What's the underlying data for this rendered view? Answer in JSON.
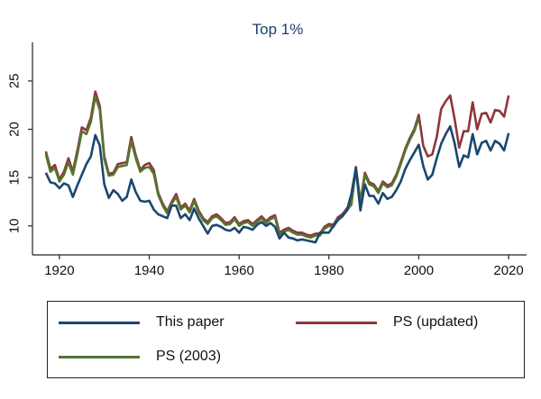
{
  "chart_data": {
    "type": "line",
    "title": "Top 1%",
    "xlabel": "",
    "ylabel": "",
    "xlim": [
      1914,
      2024
    ],
    "ylim": [
      7,
      29
    ],
    "xticks": [
      1920,
      1940,
      1960,
      1980,
      2000,
      2020
    ],
    "yticks": [
      10,
      15,
      20,
      25
    ],
    "grid": false,
    "legend_position": "bottom",
    "series": [
      {
        "name": "This paper",
        "color": "#1a476f",
        "x": [
          1917,
          1918,
          1919,
          1920,
          1921,
          1922,
          1923,
          1924,
          1925,
          1926,
          1927,
          1928,
          1929,
          1930,
          1931,
          1932,
          1933,
          1934,
          1935,
          1936,
          1937,
          1938,
          1939,
          1940,
          1941,
          1942,
          1943,
          1944,
          1945,
          1946,
          1947,
          1948,
          1949,
          1950,
          1951,
          1952,
          1953,
          1954,
          1955,
          1956,
          1957,
          1958,
          1959,
          1960,
          1961,
          1962,
          1963,
          1964,
          1965,
          1966,
          1967,
          1968,
          1969,
          1970,
          1971,
          1972,
          1973,
          1974,
          1975,
          1976,
          1977,
          1978,
          1979,
          1980,
          1981,
          1982,
          1983,
          1984,
          1985,
          1986,
          1987,
          1988,
          1989,
          1990,
          1991,
          1992,
          1993,
          1994,
          1995,
          1996,
          1997,
          1998,
          1999,
          2000,
          2001,
          2002,
          2003,
          2004,
          2005,
          2006,
          2007,
          2008,
          2009,
          2010,
          2011,
          2012,
          2013,
          2014,
          2015,
          2016,
          2017,
          2018,
          2019,
          2020
        ],
        "y": [
          15.5,
          14.5,
          14.4,
          13.9,
          14.4,
          14.2,
          13.0,
          14.2,
          15.3,
          16.4,
          17.2,
          19.4,
          18.3,
          14.3,
          12.9,
          13.7,
          13.3,
          12.6,
          13.0,
          14.8,
          13.5,
          12.6,
          12.5,
          12.6,
          11.7,
          11.2,
          11.0,
          10.8,
          12.1,
          12.1,
          10.8,
          11.2,
          10.6,
          11.8,
          10.8,
          10.0,
          9.2,
          10.0,
          10.1,
          9.9,
          9.6,
          9.5,
          9.8,
          9.3,
          9.9,
          9.8,
          9.6,
          10.1,
          10.4,
          10.0,
          10.3,
          9.9,
          8.7,
          9.3,
          8.8,
          8.7,
          8.5,
          8.6,
          8.5,
          8.4,
          8.3,
          9.3,
          9.3,
          9.3,
          10.0,
          10.6,
          11.0,
          11.6,
          13.3,
          16.0,
          11.6,
          14.3,
          13.1,
          13.1,
          12.3,
          13.4,
          12.8,
          13.0,
          13.7,
          14.6,
          15.9,
          16.8,
          17.6,
          18.4,
          16.2,
          14.8,
          15.3,
          17.0,
          18.5,
          19.5,
          20.3,
          18.5,
          16.1,
          17.3,
          17.1,
          19.5,
          17.4,
          18.6,
          18.8,
          17.8,
          18.8,
          18.5,
          17.8,
          19.6
        ]
      },
      {
        "name": "PS (updated)",
        "color": "#90353b",
        "x": [
          1917,
          1918,
          1919,
          1920,
          1921,
          1922,
          1923,
          1924,
          1925,
          1926,
          1927,
          1928,
          1929,
          1930,
          1931,
          1932,
          1933,
          1934,
          1935,
          1936,
          1937,
          1938,
          1939,
          1940,
          1941,
          1942,
          1943,
          1944,
          1945,
          1946,
          1947,
          1948,
          1949,
          1950,
          1951,
          1952,
          1953,
          1954,
          1955,
          1956,
          1957,
          1958,
          1959,
          1960,
          1961,
          1962,
          1963,
          1964,
          1965,
          1966,
          1967,
          1968,
          1969,
          1970,
          1971,
          1972,
          1973,
          1974,
          1975,
          1976,
          1977,
          1978,
          1979,
          1980,
          1981,
          1982,
          1983,
          1984,
          1985,
          1986,
          1987,
          1988,
          1989,
          1990,
          1991,
          1992,
          1993,
          1994,
          1995,
          1996,
          1997,
          1998,
          1999,
          2000,
          2001,
          2002,
          2003,
          2004,
          2005,
          2006,
          2007,
          2008,
          2009,
          2010,
          2011,
          2012,
          2013,
          2014,
          2015,
          2016,
          2017,
          2018,
          2019,
          2020
        ],
        "y": [
          17.7,
          15.9,
          16.3,
          14.8,
          15.6,
          17.0,
          15.6,
          17.8,
          20.2,
          19.9,
          21.2,
          23.9,
          22.4,
          17.2,
          15.4,
          15.5,
          16.4,
          16.5,
          16.6,
          19.2,
          17.3,
          15.8,
          16.3,
          16.5,
          15.8,
          13.4,
          12.3,
          11.5,
          12.5,
          13.3,
          11.9,
          12.3,
          11.6,
          12.8,
          11.6,
          10.8,
          10.4,
          11.0,
          11.2,
          10.8,
          10.3,
          10.4,
          10.9,
          10.2,
          10.5,
          10.6,
          10.2,
          10.6,
          11.0,
          10.5,
          10.9,
          11.1,
          9.3,
          9.6,
          9.8,
          9.5,
          9.3,
          9.3,
          9.1,
          9.0,
          9.2,
          9.2,
          9.9,
          10.2,
          10.1,
          10.9,
          11.2,
          11.8,
          12.4,
          16.1,
          12.5,
          15.5,
          14.5,
          14.3,
          13.6,
          14.6,
          14.2,
          14.4,
          15.3,
          16.6,
          18.0,
          19.1,
          20.0,
          21.5,
          18.3,
          17.2,
          17.4,
          19.2,
          22.1,
          22.9,
          23.5,
          21.0,
          18.1,
          19.8,
          19.8,
          22.8,
          20.0,
          21.6,
          21.7,
          20.7,
          22.0,
          21.9,
          21.3,
          23.5
        ]
      },
      {
        "name": "PS (2003)",
        "color": "#55752f",
        "x": [
          1917,
          1918,
          1919,
          1920,
          1921,
          1922,
          1923,
          1924,
          1925,
          1926,
          1927,
          1928,
          1929,
          1930,
          1931,
          1932,
          1933,
          1934,
          1935,
          1936,
          1937,
          1938,
          1939,
          1940,
          1941,
          1942,
          1943,
          1944,
          1945,
          1946,
          1947,
          1948,
          1949,
          1950,
          1951,
          1952,
          1953,
          1954,
          1955,
          1956,
          1957,
          1958,
          1959,
          1960,
          1961,
          1962,
          1963,
          1964,
          1965,
          1966,
          1967,
          1968,
          1969,
          1970,
          1971,
          1972,
          1973,
          1974,
          1975,
          1976,
          1977,
          1978,
          1979,
          1980,
          1981,
          1982,
          1983,
          1984,
          1985,
          1986,
          1987,
          1988,
          1989,
          1990,
          1991,
          1992,
          1993,
          1994,
          1995,
          1996,
          1997,
          1998,
          1999,
          2000
        ],
        "y": [
          17.4,
          15.6,
          16.0,
          14.6,
          15.3,
          16.6,
          15.3,
          17.4,
          19.8,
          19.5,
          20.8,
          23.4,
          22.0,
          16.9,
          15.2,
          15.3,
          16.1,
          16.2,
          16.3,
          18.8,
          17.0,
          15.6,
          16.0,
          16.1,
          15.4,
          13.2,
          12.1,
          11.3,
          12.3,
          13.0,
          11.7,
          12.1,
          11.4,
          12.6,
          11.4,
          10.6,
          10.2,
          10.8,
          11.0,
          10.6,
          10.1,
          10.2,
          10.7,
          10.0,
          10.3,
          10.4,
          10.0,
          10.4,
          10.8,
          10.3,
          10.7,
          10.9,
          9.1,
          9.4,
          9.6,
          9.3,
          9.1,
          9.1,
          8.9,
          8.8,
          9.0,
          9.0,
          9.7,
          10.0,
          9.9,
          10.7,
          11.0,
          11.6,
          12.2,
          15.9,
          12.3,
          15.3,
          14.3,
          14.1,
          13.4,
          14.4,
          14.0,
          14.2,
          15.1,
          16.4,
          17.8,
          18.9,
          19.8,
          21.2
        ]
      }
    ]
  }
}
